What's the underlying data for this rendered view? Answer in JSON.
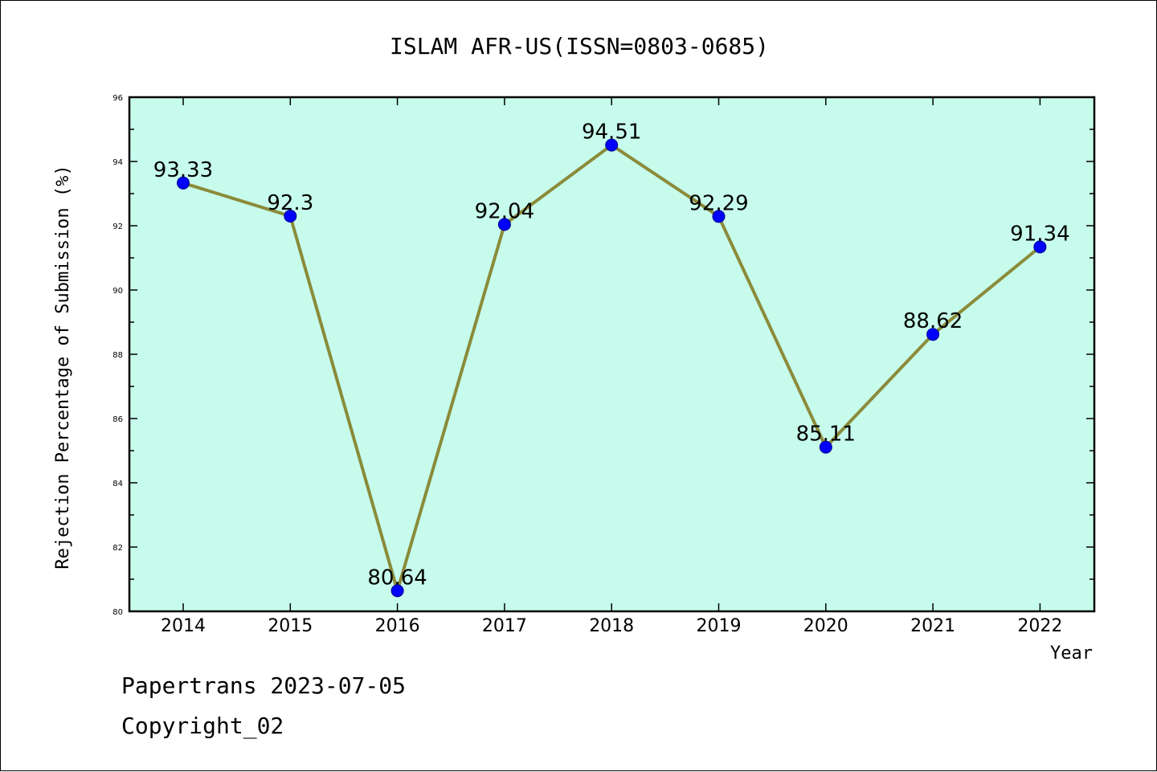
{
  "chart_data": {
    "type": "line",
    "title": "ISLAM AFR-US(ISSN=0803-0685)",
    "xlabel": "Year",
    "ylabel": "Rejection Percentage of Submission (%)",
    "categories": [
      "2014",
      "2015",
      "2016",
      "2017",
      "2018",
      "2019",
      "2020",
      "2021",
      "2022"
    ],
    "values": [
      93.33,
      92.3,
      80.64,
      92.04,
      94.51,
      92.29,
      85.11,
      88.62,
      91.34
    ],
    "data_labels": [
      "93.33",
      "92.3",
      "80.64",
      "92.04",
      "94.51",
      "92.29",
      "85.11",
      "88.62",
      "91.34"
    ],
    "ylim": [
      80,
      96
    ],
    "yticks": [
      "80",
      "82",
      "84",
      "86",
      "88",
      "90",
      "92",
      "94",
      "96"
    ],
    "grid": false,
    "colors": {
      "plot_background": "#c7fcec",
      "line": "#8b8b3a",
      "marker": "#0000ff"
    }
  },
  "footer": {
    "line1": "Papertrans 2023-07-05",
    "line2": "Copyright_02"
  }
}
